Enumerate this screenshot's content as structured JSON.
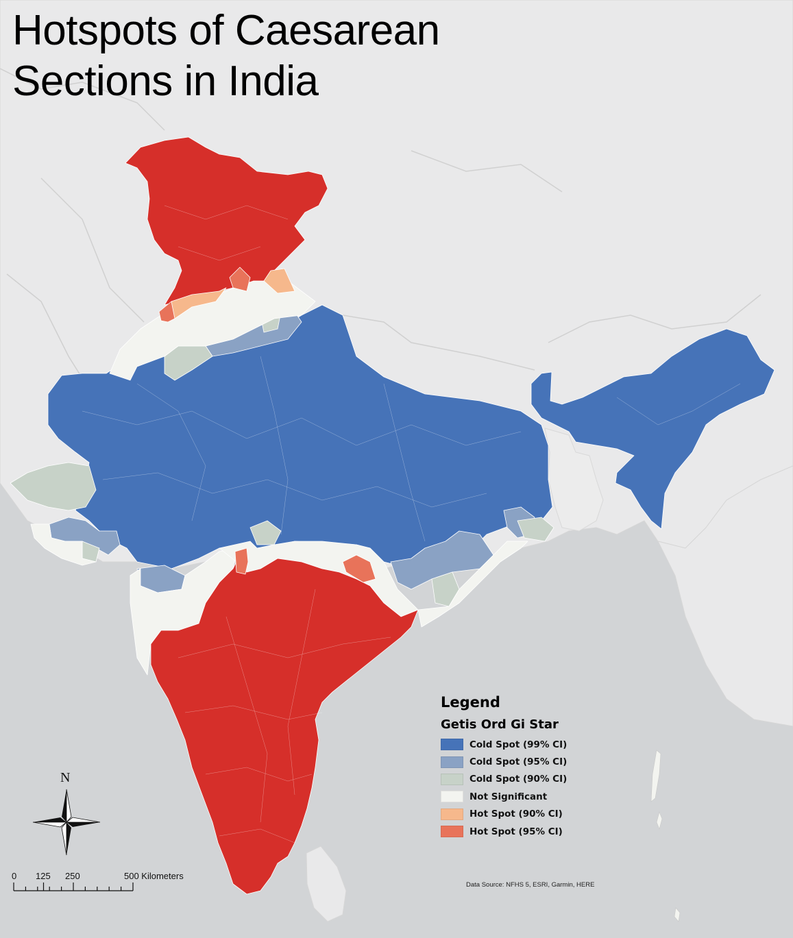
{
  "title_lines": [
    "Hotspots of Caesarean",
    "Sections in India"
  ],
  "legend": {
    "heading": "Legend",
    "subheading": "Getis Ord Gi Star",
    "items": [
      {
        "label": "Cold Spot (99% CI)",
        "color": "#4673b8"
      },
      {
        "label": "Cold Spot (95% CI)",
        "color": "#8aa2c4"
      },
      {
        "label": "Cold Spot (90% CI)",
        "color": "#c7d2c8"
      },
      {
        "label": "Not Significant",
        "color": "#f3f4f0"
      },
      {
        "label": "Hot Spot (90% CI)",
        "color": "#f6b88c"
      },
      {
        "label": "Hot Spot (95% CI)",
        "color": "#e8735a"
      }
    ]
  },
  "colors": {
    "hot_99": "#d62f2a",
    "ocean": "#d2d4d6",
    "neighbor_land": "#e9e9ea",
    "boundary": "#ffffff"
  },
  "north_arrow": {
    "letter": "N"
  },
  "scale_bar": {
    "labels": [
      {
        "text": "0",
        "km": 0
      },
      {
        "text": "125",
        "km": 125
      },
      {
        "text": "250",
        "km": 250
      },
      {
        "text": "500 Kilometers",
        "km": 500
      }
    ]
  },
  "data_source": "Data Source: NFHS 5, ESRI, Garmin, HERE"
}
